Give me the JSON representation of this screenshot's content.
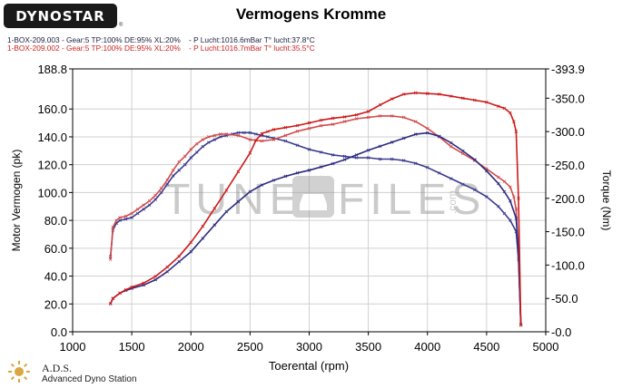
{
  "header": {
    "brand": "DYNOSTAR",
    "brand_mark": "®",
    "title": "Vermogens Kromme",
    "runs": [
      "1-BOX-209.003 - Gear:5 TP:100% DE:95% XL:20%    - P Lucht:1016.6mBar T° lucht:37.8°C",
      "1-BOX-209.002 - Gear:5 TP:100% DE:95% XL:20%    - P Lucht:1016.7mBar T° lucht:35.5°C"
    ]
  },
  "watermark": {
    "left": "TUNE",
    "right": "FILES",
    "suffix": ".com"
  },
  "footer": {
    "ads_title": "A.D.S.",
    "ads_subtitle": "Advanced Dyno Station"
  },
  "colors": {
    "run_003": "#2a2a80",
    "run_002": "#cc2222",
    "grid": "#d0d0d0",
    "axis": "#000000"
  },
  "icons": {
    "ads_logo": "ads-sun-icon"
  },
  "chart_data": {
    "type": "line",
    "title": "Vermogens Kromme",
    "xlabel": "Toerental (rpm)",
    "ylabel_left": "Motor Vermogen (pk)",
    "ylabel_right": "Torque (Nm)",
    "xlim": [
      1000,
      5000
    ],
    "ylim_left": [
      0,
      188.8
    ],
    "ylim_right": [
      0,
      -393.9
    ],
    "x_ticks": [
      "1000",
      "1500",
      "2000",
      "2500",
      "3000",
      "3500",
      "4000",
      "4500",
      "5000"
    ],
    "y_ticks_left": [
      "0.0",
      "20.0",
      "40.0",
      "60.0",
      "80.0",
      "100.0",
      "120.0",
      "140.0",
      "160.0",
      "188.8"
    ],
    "y_ticks_right": [
      "-0.0",
      "-50.0",
      "-100.0",
      "-150.0",
      "-200.0",
      "-250.0",
      "-300.0",
      "-350.0",
      "-393.9"
    ],
    "grid": true,
    "series": [
      {
        "name": "1-BOX-209.003 Vermogen",
        "axis": "left",
        "color": "#3a3a90",
        "points": [
          [
            1320,
            54
          ],
          [
            1340,
            73
          ],
          [
            1370,
            78
          ],
          [
            1400,
            80
          ],
          [
            1450,
            81
          ],
          [
            1500,
            82
          ],
          [
            1550,
            85
          ],
          [
            1600,
            88
          ],
          [
            1650,
            91
          ],
          [
            1700,
            95
          ],
          [
            1750,
            100
          ],
          [
            1800,
            106
          ],
          [
            1850,
            112
          ],
          [
            1900,
            116
          ],
          [
            1950,
            120
          ],
          [
            2000,
            125
          ],
          [
            2050,
            129
          ],
          [
            2100,
            133
          ],
          [
            2150,
            136
          ],
          [
            2200,
            138
          ],
          [
            2250,
            140
          ],
          [
            2300,
            141
          ],
          [
            2350,
            142
          ],
          [
            2400,
            143
          ],
          [
            2450,
            143
          ],
          [
            2500,
            143
          ],
          [
            2550,
            142
          ],
          [
            2600,
            141
          ],
          [
            2650,
            140
          ],
          [
            2700,
            139
          ],
          [
            2800,
            137
          ],
          [
            2900,
            134
          ],
          [
            3000,
            131
          ],
          [
            3100,
            129
          ],
          [
            3200,
            127
          ],
          [
            3300,
            126
          ],
          [
            3400,
            125
          ],
          [
            3500,
            125
          ],
          [
            3600,
            124
          ],
          [
            3700,
            124
          ],
          [
            3800,
            123
          ],
          [
            3900,
            121
          ],
          [
            4000,
            118
          ],
          [
            4100,
            114
          ],
          [
            4200,
            110
          ],
          [
            4300,
            106
          ],
          [
            4400,
            102
          ],
          [
            4500,
            97
          ],
          [
            4600,
            90
          ],
          [
            4650,
            85
          ],
          [
            4700,
            80
          ],
          [
            4750,
            72
          ],
          [
            4770,
            52
          ],
          [
            4790,
            5
          ]
        ]
      },
      {
        "name": "1-BOX-209.002 Vermogen",
        "axis": "left",
        "color": "#d24b4b",
        "points": [
          [
            1320,
            52
          ],
          [
            1340,
            75
          ],
          [
            1370,
            80
          ],
          [
            1400,
            82
          ],
          [
            1450,
            83
          ],
          [
            1500,
            85
          ],
          [
            1550,
            88
          ],
          [
            1600,
            91
          ],
          [
            1650,
            94
          ],
          [
            1700,
            98
          ],
          [
            1750,
            103
          ],
          [
            1800,
            109
          ],
          [
            1850,
            116
          ],
          [
            1900,
            122
          ],
          [
            1950,
            126
          ],
          [
            2000,
            131
          ],
          [
            2050,
            135
          ],
          [
            2100,
            138
          ],
          [
            2150,
            140
          ],
          [
            2200,
            141
          ],
          [
            2250,
            142
          ],
          [
            2300,
            142
          ],
          [
            2400,
            141
          ],
          [
            2500,
            138
          ],
          [
            2600,
            137
          ],
          [
            2700,
            138
          ],
          [
            2800,
            141
          ],
          [
            2900,
            144
          ],
          [
            3000,
            146
          ],
          [
            3100,
            148
          ],
          [
            3200,
            149
          ],
          [
            3300,
            151
          ],
          [
            3400,
            153
          ],
          [
            3500,
            154
          ],
          [
            3600,
            155
          ],
          [
            3700,
            155
          ],
          [
            3800,
            154
          ],
          [
            3900,
            151
          ],
          [
            4000,
            146
          ],
          [
            4100,
            140
          ],
          [
            4200,
            133
          ],
          [
            4300,
            128
          ],
          [
            4400,
            123
          ],
          [
            4500,
            117
          ],
          [
            4600,
            111
          ],
          [
            4650,
            108
          ],
          [
            4700,
            104
          ],
          [
            4730,
            97
          ],
          [
            4750,
            88
          ],
          [
            4770,
            55
          ],
          [
            4790,
            5
          ]
        ]
      },
      {
        "name": "1-BOX-209.003 Torque",
        "axis": "right",
        "color": "#2a2a80",
        "points": [
          [
            1320,
            -42
          ],
          [
            1340,
            -50
          ],
          [
            1400,
            -58
          ],
          [
            1450,
            -62
          ],
          [
            1500,
            -65
          ],
          [
            1600,
            -70
          ],
          [
            1700,
            -78
          ],
          [
            1800,
            -90
          ],
          [
            1900,
            -105
          ],
          [
            2000,
            -120
          ],
          [
            2100,
            -140
          ],
          [
            2200,
            -160
          ],
          [
            2300,
            -180
          ],
          [
            2400,
            -195
          ],
          [
            2500,
            -210
          ],
          [
            2600,
            -220
          ],
          [
            2700,
            -227
          ],
          [
            2800,
            -233
          ],
          [
            2900,
            -238
          ],
          [
            3000,
            -242
          ],
          [
            3100,
            -247
          ],
          [
            3200,
            -252
          ],
          [
            3300,
            -258
          ],
          [
            3400,
            -265
          ],
          [
            3500,
            -272
          ],
          [
            3600,
            -278
          ],
          [
            3700,
            -284
          ],
          [
            3800,
            -290
          ],
          [
            3900,
            -296
          ],
          [
            4000,
            -298
          ],
          [
            4100,
            -293
          ],
          [
            4200,
            -283
          ],
          [
            4300,
            -271
          ],
          [
            4400,
            -258
          ],
          [
            4500,
            -241
          ],
          [
            4600,
            -222
          ],
          [
            4650,
            -210
          ],
          [
            4700,
            -196
          ],
          [
            4750,
            -170
          ],
          [
            4770,
            -120
          ],
          [
            4790,
            -10
          ]
        ]
      },
      {
        "name": "1-BOX-209.002 Torque",
        "axis": "right",
        "color": "#cc1a1a",
        "points": [
          [
            1320,
            -42
          ],
          [
            1340,
            -50
          ],
          [
            1400,
            -58
          ],
          [
            1450,
            -63
          ],
          [
            1500,
            -67
          ],
          [
            1600,
            -73
          ],
          [
            1700,
            -83
          ],
          [
            1800,
            -97
          ],
          [
            1900,
            -113
          ],
          [
            2000,
            -134
          ],
          [
            2100,
            -158
          ],
          [
            2200,
            -185
          ],
          [
            2300,
            -212
          ],
          [
            2400,
            -240
          ],
          [
            2500,
            -268
          ],
          [
            2550,
            -287
          ],
          [
            2600,
            -297
          ],
          [
            2650,
            -300
          ],
          [
            2700,
            -303
          ],
          [
            2800,
            -306
          ],
          [
            2900,
            -309
          ],
          [
            3000,
            -313
          ],
          [
            3100,
            -317
          ],
          [
            3200,
            -320
          ],
          [
            3300,
            -322
          ],
          [
            3400,
            -325
          ],
          [
            3500,
            -330
          ],
          [
            3600,
            -340
          ],
          [
            3700,
            -349
          ],
          [
            3800,
            -356
          ],
          [
            3900,
            -358
          ],
          [
            4000,
            -357
          ],
          [
            4100,
            -356
          ],
          [
            4200,
            -353
          ],
          [
            4300,
            -350
          ],
          [
            4400,
            -347
          ],
          [
            4500,
            -344
          ],
          [
            4600,
            -338
          ],
          [
            4650,
            -335
          ],
          [
            4700,
            -328
          ],
          [
            4730,
            -315
          ],
          [
            4750,
            -300
          ],
          [
            4770,
            -200
          ],
          [
            4790,
            -10
          ]
        ]
      }
    ]
  }
}
